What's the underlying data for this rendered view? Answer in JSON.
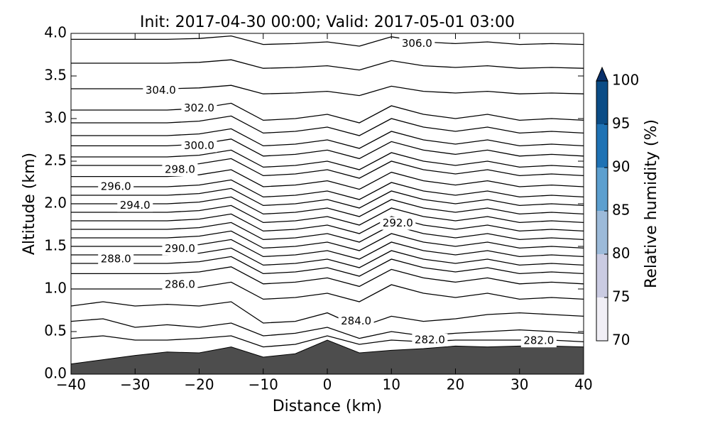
{
  "chart_data": {
    "type": "contour",
    "title": "Init: 2017-04-30 00:00; Valid: 2017-05-01 03:00",
    "xlabel": "Distance (km)",
    "ylabel": "Altitude (km)",
    "xlim": [
      -40,
      40
    ],
    "ylim": [
      0,
      4
    ],
    "xticks": [
      {
        "value": -40,
        "label": "−40"
      },
      {
        "value": -30,
        "label": "−30"
      },
      {
        "value": -20,
        "label": "−20"
      },
      {
        "value": -10,
        "label": "−10"
      },
      0,
      10,
      20,
      30,
      40
    ],
    "yticks": [
      {
        "value": 0,
        "label": "0.0"
      },
      {
        "value": 0.5,
        "label": "0.5"
      },
      {
        "value": 1,
        "label": "1.0"
      },
      {
        "value": 1.5,
        "label": "1.5"
      },
      {
        "value": 2,
        "label": "2.0"
      },
      {
        "value": 2.5,
        "label": "2.5"
      },
      {
        "value": 3,
        "label": "3.0"
      },
      {
        "value": 3.5,
        "label": "3.5"
      },
      {
        "value": 4,
        "label": "4.0"
      }
    ],
    "x": [
      -40,
      -35,
      -30,
      -25,
      -20,
      -15,
      -10,
      -5,
      0,
      5,
      10,
      15,
      20,
      25,
      30,
      35,
      40
    ],
    "line_color": "#000000",
    "contours": [
      [
        3.93,
        3.93,
        3.93,
        3.93,
        3.94,
        3.97,
        3.87,
        3.88,
        3.9,
        3.85,
        3.96,
        3.9,
        3.88,
        3.9,
        3.87,
        3.88,
        3.87
      ],
      [
        3.65,
        3.65,
        3.65,
        3.65,
        3.66,
        3.69,
        3.59,
        3.6,
        3.62,
        3.57,
        3.68,
        3.62,
        3.6,
        3.62,
        3.59,
        3.6,
        3.59
      ],
      [
        3.35,
        3.35,
        3.35,
        3.35,
        3.36,
        3.39,
        3.29,
        3.3,
        3.32,
        3.27,
        3.38,
        3.32,
        3.3,
        3.32,
        3.29,
        3.3,
        3.29
      ],
      [
        3.1,
        3.1,
        3.1,
        3.1,
        3.12,
        3.18,
        2.98,
        3.0,
        3.05,
        2.95,
        3.15,
        3.05,
        3.0,
        3.05,
        2.98,
        3.0,
        2.98
      ],
      [
        2.95,
        2.95,
        2.95,
        2.95,
        2.97,
        3.03,
        2.83,
        2.85,
        2.9,
        2.8,
        3.0,
        2.9,
        2.85,
        2.9,
        2.83,
        2.85,
        2.83
      ],
      [
        2.8,
        2.8,
        2.8,
        2.8,
        2.82,
        2.88,
        2.68,
        2.7,
        2.75,
        2.65,
        2.85,
        2.75,
        2.7,
        2.75,
        2.68,
        2.7,
        2.68
      ],
      [
        2.68,
        2.68,
        2.68,
        2.68,
        2.7,
        2.76,
        2.56,
        2.58,
        2.63,
        2.53,
        2.73,
        2.63,
        2.58,
        2.63,
        2.56,
        2.58,
        2.56
      ],
      [
        2.55,
        2.55,
        2.55,
        2.55,
        2.57,
        2.63,
        2.43,
        2.45,
        2.5,
        2.4,
        2.6,
        2.5,
        2.45,
        2.5,
        2.43,
        2.45,
        2.43
      ],
      [
        2.45,
        2.45,
        2.45,
        2.45,
        2.47,
        2.53,
        2.33,
        2.35,
        2.4,
        2.3,
        2.5,
        2.4,
        2.35,
        2.4,
        2.33,
        2.35,
        2.33
      ],
      [
        2.32,
        2.32,
        2.32,
        2.32,
        2.34,
        2.4,
        2.2,
        2.22,
        2.27,
        2.17,
        2.37,
        2.27,
        2.22,
        2.27,
        2.2,
        2.22,
        2.2
      ],
      [
        2.2,
        2.2,
        2.2,
        2.2,
        2.22,
        2.28,
        2.08,
        2.1,
        2.15,
        2.05,
        2.25,
        2.15,
        2.1,
        2.15,
        2.08,
        2.1,
        2.08
      ],
      [
        2.1,
        2.1,
        2.1,
        2.1,
        2.12,
        2.18,
        1.98,
        2.0,
        2.05,
        1.95,
        2.15,
        2.05,
        2.0,
        2.05,
        1.98,
        2.0,
        1.98
      ],
      [
        2.0,
        2.0,
        2.0,
        2.0,
        2.02,
        2.08,
        1.88,
        1.9,
        1.95,
        1.85,
        2.05,
        1.95,
        1.9,
        1.95,
        1.88,
        1.9,
        1.88
      ],
      [
        1.9,
        1.9,
        1.9,
        1.9,
        1.92,
        1.98,
        1.78,
        1.8,
        1.85,
        1.75,
        1.95,
        1.85,
        1.8,
        1.85,
        1.78,
        1.8,
        1.78
      ],
      [
        1.8,
        1.8,
        1.8,
        1.8,
        1.82,
        1.88,
        1.68,
        1.7,
        1.75,
        1.65,
        1.85,
        1.75,
        1.7,
        1.75,
        1.68,
        1.7,
        1.68
      ],
      [
        1.7,
        1.7,
        1.7,
        1.7,
        1.72,
        1.78,
        1.58,
        1.6,
        1.65,
        1.55,
        1.75,
        1.65,
        1.6,
        1.65,
        1.58,
        1.6,
        1.58
      ],
      [
        1.6,
        1.6,
        1.6,
        1.6,
        1.62,
        1.68,
        1.48,
        1.5,
        1.55,
        1.45,
        1.65,
        1.55,
        1.5,
        1.55,
        1.48,
        1.5,
        1.48
      ],
      [
        1.5,
        1.5,
        1.5,
        1.5,
        1.52,
        1.58,
        1.38,
        1.4,
        1.45,
        1.35,
        1.55,
        1.45,
        1.4,
        1.45,
        1.38,
        1.4,
        1.38
      ],
      [
        1.4,
        1.4,
        1.4,
        1.4,
        1.42,
        1.48,
        1.28,
        1.3,
        1.35,
        1.25,
        1.45,
        1.35,
        1.3,
        1.35,
        1.28,
        1.3,
        1.28
      ],
      [
        1.3,
        1.3,
        1.3,
        1.3,
        1.32,
        1.38,
        1.18,
        1.2,
        1.25,
        1.15,
        1.35,
        1.25,
        1.2,
        1.25,
        1.18,
        1.2,
        1.18
      ],
      [
        1.18,
        1.18,
        1.18,
        1.18,
        1.2,
        1.26,
        1.06,
        1.08,
        1.13,
        1.03,
        1.23,
        1.13,
        1.08,
        1.13,
        1.06,
        1.08,
        1.06
      ],
      [
        1.0,
        1.0,
        1.0,
        1.0,
        1.02,
        1.08,
        0.88,
        0.9,
        0.95,
        0.85,
        1.05,
        0.95,
        0.9,
        0.95,
        0.88,
        0.9,
        0.88
      ],
      [
        0.8,
        0.85,
        0.8,
        0.82,
        0.8,
        0.85,
        0.6,
        0.62,
        0.72,
        0.55,
        0.68,
        0.62,
        0.65,
        0.7,
        0.72,
        0.7,
        0.68
      ],
      [
        0.62,
        0.65,
        0.55,
        0.58,
        0.55,
        0.6,
        0.45,
        0.48,
        0.55,
        0.42,
        0.5,
        0.45,
        0.48,
        0.5,
        0.52,
        0.5,
        0.48
      ],
      [
        0.42,
        0.45,
        0.4,
        0.4,
        0.42,
        0.45,
        0.32,
        0.35,
        0.45,
        0.35,
        0.4,
        0.38,
        0.4,
        0.4,
        0.4,
        0.4,
        0.38
      ]
    ],
    "contour_labels": [
      {
        "text": "306.0",
        "x": 14,
        "y": 3.88
      },
      {
        "text": "304.0",
        "x": -26,
        "y": 3.33
      },
      {
        "text": "302.0",
        "x": -20,
        "y": 3.12
      },
      {
        "text": "300.0",
        "x": -20,
        "y": 2.68
      },
      {
        "text": "298.0",
        "x": -23,
        "y": 2.4
      },
      {
        "text": "296.0",
        "x": -33,
        "y": 2.2
      },
      {
        "text": "294.0",
        "x": -30,
        "y": 1.98
      },
      {
        "text": "292.0",
        "x": 11,
        "y": 1.77
      },
      {
        "text": "290.0",
        "x": -23,
        "y": 1.47
      },
      {
        "text": "288.0",
        "x": -33,
        "y": 1.35
      },
      {
        "text": "286.0",
        "x": -23,
        "y": 1.05
      },
      {
        "text": "284.0",
        "x": 4.5,
        "y": 0.62
      },
      {
        "text": "282.0",
        "x": 16,
        "y": 0.4
      },
      {
        "text": "282.0",
        "x": 33,
        "y": 0.39
      }
    ],
    "terrain": {
      "color": "#4d4d4d",
      "x": [
        -40,
        -35,
        -30,
        -25,
        -20,
        -15,
        -10,
        -5,
        0,
        5,
        10,
        15,
        20,
        25,
        30,
        35,
        40
      ],
      "height": [
        0.12,
        0.17,
        0.22,
        0.26,
        0.25,
        0.32,
        0.2,
        0.24,
        0.4,
        0.25,
        0.28,
        0.3,
        0.33,
        0.32,
        0.33,
        0.33,
        0.32
      ]
    },
    "colorbar": {
      "label": "Relative humidity (%)",
      "levels": [
        70,
        75,
        80,
        85,
        90,
        95,
        100
      ],
      "colors": [
        "#f1eff6",
        "#cacbe2",
        "#9cbad9",
        "#5c9fcf",
        "#1f72b4",
        "#0b4c86"
      ],
      "extend_color": "#08306b",
      "ticks": [
        70,
        75,
        80,
        85,
        90,
        95,
        100
      ]
    }
  }
}
